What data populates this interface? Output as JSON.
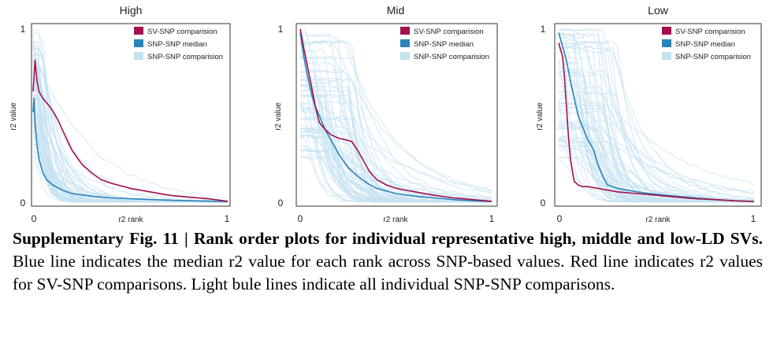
{
  "colors": {
    "sv_snp": "#a50f4b",
    "snp_median": "#2b83ba",
    "snp_snp": "#c6e2f0"
  },
  "caption": {
    "bold": "Supplementary Fig. 11 | Rank order plots for individual representative high, middle and low-LD SVs.",
    "body": " Blue line indicates the median r2 value for each rank across SNP-based values. Red line indicates r2 values for SV-SNP comparisons. Light bule lines indicate all individual SNP-SNP comparisons."
  },
  "chart_data": [
    {
      "type": "line",
      "title": "High",
      "xlabel": "r2 rank",
      "ylabel": "r2 value",
      "xlim": [
        0,
        1
      ],
      "ylim": [
        0,
        1
      ],
      "x_ticks": [
        "0",
        "1"
      ],
      "y_ticks": [
        "0",
        "1"
      ],
      "legend_position": "top-right",
      "legend": [
        "SV-SNP comparision",
        "SNP-SNP median",
        "SNP-SNP comparision"
      ],
      "series": [
        {
          "name": "SV-SNP comparision",
          "x": [
            0,
            0.01,
            0.02,
            0.03,
            0.05,
            0.08,
            0.1,
            0.13,
            0.15,
            0.2,
            0.25,
            0.3,
            0.35,
            0.4,
            0.5,
            0.6,
            0.7,
            0.8,
            0.9,
            0.97,
            1.0
          ],
          "y": [
            0.64,
            0.82,
            0.7,
            0.64,
            0.6,
            0.56,
            0.53,
            0.47,
            0.42,
            0.3,
            0.22,
            0.17,
            0.13,
            0.11,
            0.08,
            0.06,
            0.04,
            0.03,
            0.02,
            0.01,
            0.005
          ]
        },
        {
          "name": "SNP-SNP median",
          "x": [
            0,
            0.005,
            0.01,
            0.02,
            0.03,
            0.05,
            0.07,
            0.1,
            0.15,
            0.2,
            0.3,
            0.4,
            0.5,
            0.7,
            0.9,
            1.0
          ],
          "y": [
            0.52,
            0.6,
            0.45,
            0.33,
            0.25,
            0.17,
            0.13,
            0.1,
            0.07,
            0.05,
            0.035,
            0.025,
            0.02,
            0.012,
            0.006,
            0.003
          ]
        }
      ]
    },
    {
      "type": "line",
      "title": "Mid",
      "xlabel": "r2 rank",
      "ylabel": "r2 value",
      "xlim": [
        0,
        1
      ],
      "ylim": [
        0,
        1
      ],
      "x_ticks": [
        "0",
        "1"
      ],
      "y_ticks": [
        "0",
        "1"
      ],
      "legend_position": "top-right",
      "legend": [
        "SV-SNP comparision",
        "SNP-SNP median",
        "SNP-SNP comparision"
      ],
      "series": [
        {
          "name": "SV-SNP comparision",
          "x": [
            0,
            0.02,
            0.05,
            0.08,
            0.1,
            0.13,
            0.16,
            0.2,
            0.24,
            0.27,
            0.3,
            0.33,
            0.36,
            0.4,
            0.45,
            0.5,
            0.55,
            0.6,
            0.7,
            0.8,
            0.9,
            0.97,
            1.0
          ],
          "y": [
            1.0,
            0.88,
            0.72,
            0.55,
            0.46,
            0.42,
            0.39,
            0.37,
            0.36,
            0.35,
            0.3,
            0.24,
            0.18,
            0.13,
            0.1,
            0.08,
            0.07,
            0.06,
            0.04,
            0.025,
            0.015,
            0.008,
            0.005
          ]
        },
        {
          "name": "SNP-SNP median",
          "x": [
            0,
            0.02,
            0.04,
            0.06,
            0.08,
            0.1,
            0.13,
            0.16,
            0.2,
            0.25,
            0.3,
            0.35,
            0.4,
            0.5,
            0.6,
            0.7,
            0.8,
            0.9,
            1.0
          ],
          "y": [
            0.98,
            0.83,
            0.72,
            0.62,
            0.55,
            0.5,
            0.42,
            0.36,
            0.28,
            0.2,
            0.15,
            0.11,
            0.08,
            0.05,
            0.035,
            0.025,
            0.015,
            0.008,
            0.004
          ]
        }
      ]
    },
    {
      "type": "line",
      "title": "Low",
      "xlabel": "r2 rank",
      "ylabel": "r2 value",
      "xlim": [
        0,
        1
      ],
      "ylim": [
        0,
        1
      ],
      "x_ticks": [
        "0",
        "1"
      ],
      "y_ticks": [
        "0",
        "1"
      ],
      "legend_position": "top-right",
      "legend": [
        "SV-SNP comparision",
        "SNP-SNP median",
        "SNP-SNP comparision"
      ],
      "series": [
        {
          "name": "SV-SNP comparision",
          "x": [
            0,
            0.01,
            0.02,
            0.03,
            0.04,
            0.05,
            0.06,
            0.07,
            0.08,
            0.1,
            0.12,
            0.15,
            0.2,
            0.25,
            0.3,
            0.4,
            0.5,
            0.6,
            0.7,
            0.8,
            0.9,
            1.0
          ],
          "y": [
            0.92,
            0.88,
            0.84,
            0.72,
            0.55,
            0.38,
            0.25,
            0.18,
            0.12,
            0.1,
            0.09,
            0.09,
            0.08,
            0.07,
            0.06,
            0.05,
            0.04,
            0.03,
            0.02,
            0.015,
            0.008,
            0.004
          ]
        },
        {
          "name": "SNP-SNP median",
          "x": [
            0,
            0.02,
            0.04,
            0.06,
            0.08,
            0.1,
            0.12,
            0.15,
            0.18,
            0.2,
            0.23,
            0.25,
            0.3,
            0.35,
            0.4,
            0.5,
            0.6,
            0.7,
            0.8,
            0.9,
            1.0
          ],
          "y": [
            0.98,
            0.9,
            0.82,
            0.7,
            0.6,
            0.5,
            0.44,
            0.36,
            0.3,
            0.22,
            0.14,
            0.1,
            0.08,
            0.07,
            0.06,
            0.045,
            0.035,
            0.025,
            0.015,
            0.008,
            0.004
          ]
        }
      ]
    }
  ]
}
